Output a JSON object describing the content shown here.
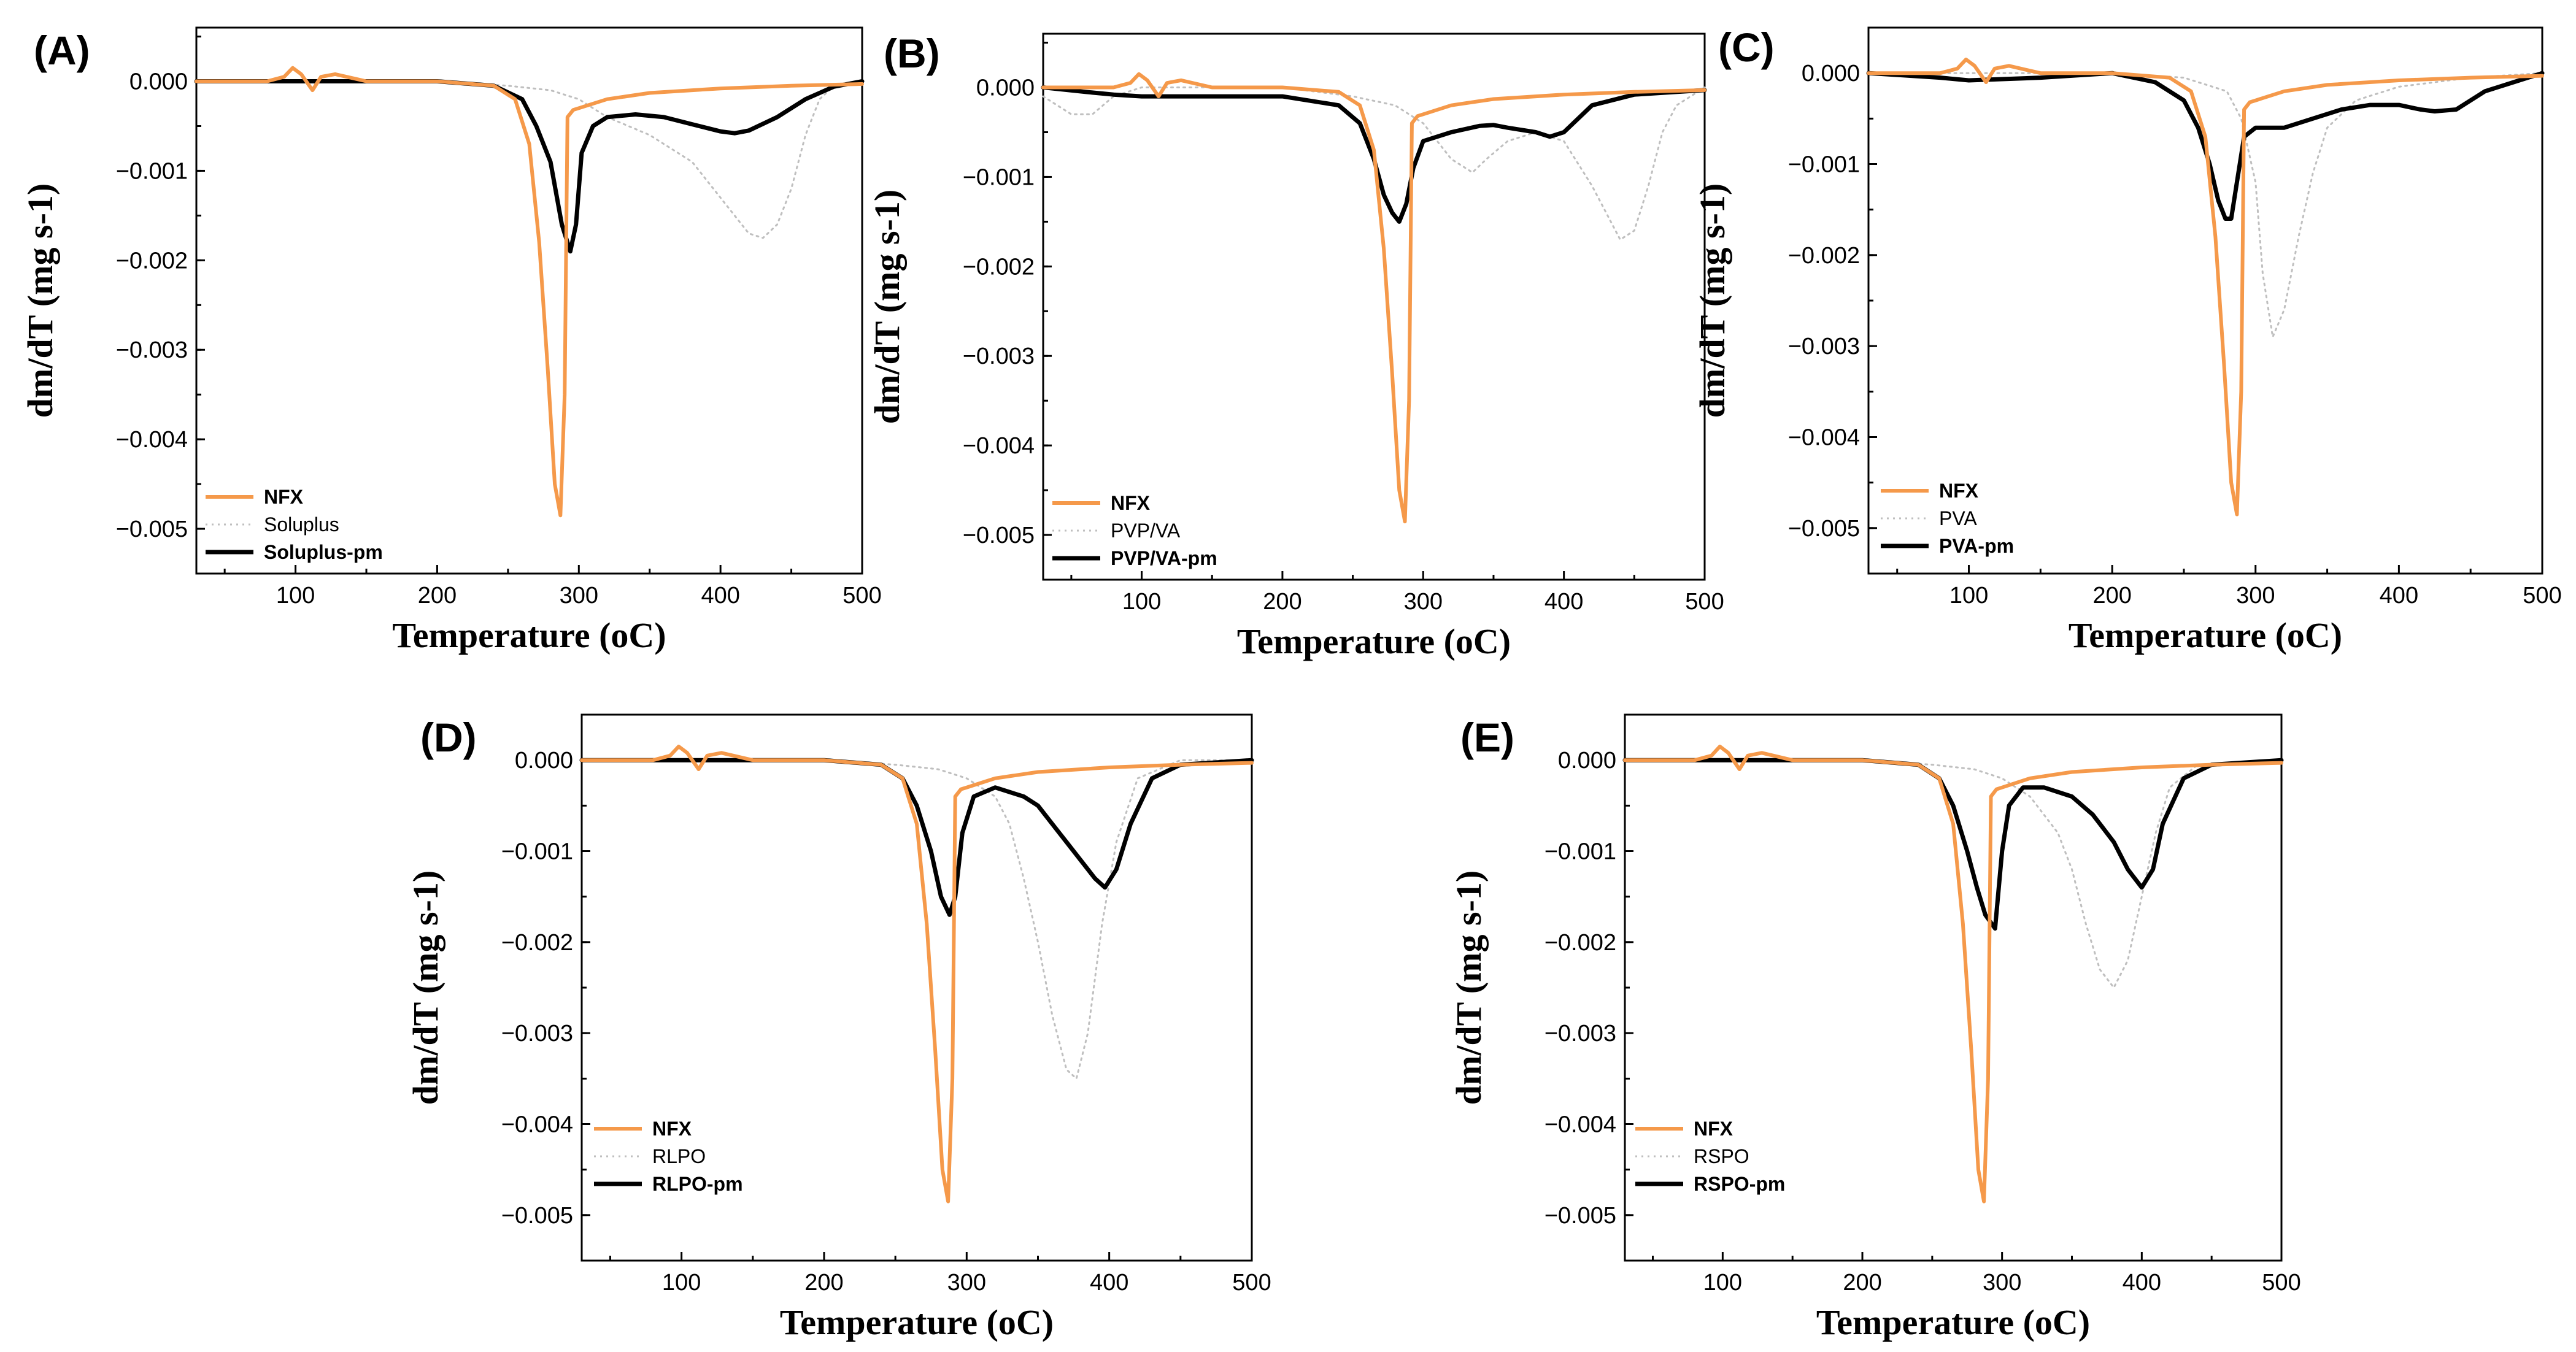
{
  "colors": {
    "drug": "#F5994A",
    "polymer": "#BFBFBF",
    "mixture": "#000000",
    "axis": "#000000"
  },
  "chart_data": [
    {
      "panel": "(A)",
      "type": "line",
      "xlabel": "Temperature (oC)",
      "ylabel": "dm/dT (mg s-1)",
      "xlim": [
        30,
        500
      ],
      "ylim": [
        -0.0055,
        0.0006
      ],
      "xticks": [
        "100",
        "200",
        "300",
        "400",
        "500"
      ],
      "yticks": [
        "0.000",
        "−0.001",
        "−0.002",
        "−0.003",
        "−0.004",
        "−0.005"
      ],
      "series": [
        {
          "name": "NFX",
          "role": "drug",
          "x": [
            30,
            80,
            92,
            98,
            104,
            112,
            118,
            128,
            150,
            200,
            240,
            255,
            265,
            272,
            278,
            283,
            287,
            290,
            292,
            296,
            300,
            320,
            350,
            400,
            450,
            500
          ],
          "y": [
            0,
            0,
            5e-05,
            0.00015,
            8e-05,
            -0.0001,
            5e-05,
            8e-05,
            0,
            0,
            -5e-05,
            -0.0002,
            -0.0007,
            -0.0018,
            -0.0032,
            -0.0045,
            -0.00485,
            -0.0035,
            -0.0004,
            -0.00032,
            -0.0003,
            -0.0002,
            -0.00013,
            -8e-05,
            -5e-05,
            -3e-05
          ]
        },
        {
          "name": "Soluplus",
          "role": "polymer",
          "x": [
            30,
            100,
            200,
            250,
            280,
            300,
            320,
            350,
            380,
            400,
            420,
            430,
            440,
            450,
            460,
            470,
            480,
            500
          ],
          "y": [
            0,
            0,
            0,
            -5e-05,
            -0.0001,
            -0.0002,
            -0.0004,
            -0.0006,
            -0.0009,
            -0.0013,
            -0.0017,
            -0.00175,
            -0.0016,
            -0.0012,
            -0.0006,
            -0.0002,
            -5e-05,
            0
          ]
        },
        {
          "name": "Soluplus-pm",
          "role": "mixture",
          "x": [
            30,
            100,
            200,
            240,
            260,
            270,
            280,
            288,
            294,
            298,
            302,
            310,
            320,
            340,
            360,
            380,
            400,
            410,
            420,
            440,
            460,
            480,
            500
          ],
          "y": [
            0,
            0,
            0,
            -5e-05,
            -0.0002,
            -0.0005,
            -0.0009,
            -0.0016,
            -0.0019,
            -0.0016,
            -0.0008,
            -0.0005,
            -0.0004,
            -0.00037,
            -0.0004,
            -0.00048,
            -0.00056,
            -0.00058,
            -0.00055,
            -0.0004,
            -0.0002,
            -6e-05,
            0
          ]
        }
      ]
    },
    {
      "panel": "(B)",
      "type": "line",
      "xlabel": "Temperature (oC)",
      "ylabel": "dm/dT (mg s-1)",
      "xlim": [
        30,
        500
      ],
      "ylim": [
        -0.0055,
        0.0006
      ],
      "xticks": [
        "100",
        "200",
        "300",
        "400",
        "500"
      ],
      "yticks": [
        "0.000",
        "−0.001",
        "−0.002",
        "−0.003",
        "−0.004",
        "−0.005"
      ],
      "series": [
        {
          "name": "NFX",
          "role": "drug",
          "x": [
            30,
            80,
            92,
            98,
            104,
            112,
            118,
            128,
            150,
            200,
            240,
            255,
            265,
            272,
            278,
            283,
            287,
            290,
            292,
            296,
            300,
            320,
            350,
            400,
            450,
            500
          ],
          "y": [
            0,
            0,
            5e-05,
            0.00015,
            8e-05,
            -0.0001,
            5e-05,
            8e-05,
            0,
            0,
            -5e-05,
            -0.0002,
            -0.0007,
            -0.0018,
            -0.0032,
            -0.0045,
            -0.00485,
            -0.0035,
            -0.0004,
            -0.00032,
            -0.0003,
            -0.0002,
            -0.00013,
            -8e-05,
            -5e-05,
            -3e-05
          ]
        },
        {
          "name": "PVP/VA",
          "role": "polymer",
          "x": [
            30,
            50,
            65,
            80,
            100,
            150,
            200,
            250,
            280,
            300,
            320,
            335,
            345,
            360,
            380,
            400,
            420,
            440,
            450,
            460,
            470,
            480,
            500
          ],
          "y": [
            -0.0001,
            -0.0003,
            -0.0003,
            -0.0001,
            0,
            0,
            0,
            -0.0001,
            -0.0002,
            -0.0004,
            -0.0008,
            -0.00095,
            -0.0008,
            -0.0006,
            -0.0005,
            -0.0006,
            -0.0011,
            -0.0017,
            -0.0016,
            -0.0011,
            -0.0005,
            -0.0002,
            0
          ]
        },
        {
          "name": "PVP/VA-pm",
          "role": "mixture",
          "x": [
            30,
            60,
            80,
            100,
            150,
            200,
            240,
            255,
            265,
            272,
            278,
            283,
            288,
            293,
            300,
            320,
            340,
            350,
            360,
            380,
            390,
            400,
            420,
            450,
            500
          ],
          "y": [
            0,
            -5e-05,
            -8e-05,
            -0.0001,
            -0.0001,
            -0.0001,
            -0.0002,
            -0.0004,
            -0.0008,
            -0.0012,
            -0.0014,
            -0.0015,
            -0.0013,
            -0.0009,
            -0.0006,
            -0.0005,
            -0.00043,
            -0.00042,
            -0.00045,
            -0.0005,
            -0.00055,
            -0.0005,
            -0.0002,
            -8e-05,
            -3e-05
          ]
        }
      ]
    },
    {
      "panel": "(C)",
      "type": "line",
      "xlabel": "Temperature (oC)",
      "ylabel": "dm/dT (mg s-1)",
      "xlim": [
        30,
        500
      ],
      "ylim": [
        -0.0055,
        0.0005
      ],
      "xticks": [
        "100",
        "200",
        "300",
        "400",
        "500"
      ],
      "yticks": [
        "0.000",
        "−0.001",
        "−0.002",
        "−0.003",
        "−0.004",
        "−0.005"
      ],
      "series": [
        {
          "name": "NFX",
          "role": "drug",
          "x": [
            30,
            80,
            92,
            98,
            104,
            112,
            118,
            128,
            150,
            200,
            240,
            255,
            265,
            272,
            278,
            283,
            287,
            290,
            292,
            296,
            300,
            320,
            350,
            400,
            450,
            500
          ],
          "y": [
            0,
            0,
            5e-05,
            0.00015,
            8e-05,
            -0.0001,
            5e-05,
            8e-05,
            0,
            0,
            -5e-05,
            -0.0002,
            -0.0007,
            -0.0018,
            -0.0032,
            -0.0045,
            -0.00485,
            -0.0035,
            -0.0004,
            -0.00032,
            -0.0003,
            -0.0002,
            -0.00013,
            -8e-05,
            -5e-05,
            -3e-05
          ]
        },
        {
          "name": "PVA",
          "role": "polymer",
          "x": [
            30,
            100,
            200,
            250,
            280,
            290,
            300,
            305,
            312,
            320,
            330,
            340,
            350,
            370,
            400,
            450,
            500
          ],
          "y": [
            0,
            0,
            0,
            -5e-05,
            -0.0002,
            -0.0005,
            -0.0012,
            -0.0022,
            -0.0029,
            -0.0026,
            -0.0018,
            -0.0011,
            -0.0006,
            -0.0003,
            -0.00015,
            -5e-05,
            0
          ]
        },
        {
          "name": "PVA-pm",
          "role": "mixture",
          "x": [
            30,
            80,
            100,
            150,
            200,
            230,
            250,
            260,
            268,
            274,
            279,
            283,
            287,
            292,
            300,
            320,
            340,
            360,
            380,
            400,
            415,
            425,
            440,
            460,
            480,
            500
          ],
          "y": [
            0,
            -5e-05,
            -8e-05,
            -5e-05,
            0,
            -0.0001,
            -0.0003,
            -0.0006,
            -0.001,
            -0.0014,
            -0.0016,
            -0.0016,
            -0.0012,
            -0.0007,
            -0.0006,
            -0.0006,
            -0.0005,
            -0.0004,
            -0.00035,
            -0.00035,
            -0.0004,
            -0.00042,
            -0.0004,
            -0.0002,
            -0.0001,
            0
          ]
        }
      ]
    },
    {
      "panel": "(D)",
      "type": "line",
      "xlabel": "Temperature (oC)",
      "ylabel": "dm/dT (mg s-1)",
      "xlim": [
        30,
        500
      ],
      "ylim": [
        -0.0055,
        0.0005
      ],
      "xticks": [
        "100",
        "200",
        "300",
        "400",
        "500"
      ],
      "yticks": [
        "0.000",
        "−0.001",
        "−0.002",
        "−0.003",
        "−0.004",
        "−0.005"
      ],
      "series": [
        {
          "name": "NFX",
          "role": "drug",
          "x": [
            30,
            80,
            92,
            98,
            104,
            112,
            118,
            128,
            150,
            200,
            240,
            255,
            265,
            272,
            278,
            283,
            287,
            290,
            292,
            296,
            300,
            320,
            350,
            400,
            450,
            500
          ],
          "y": [
            0,
            0,
            5e-05,
            0.00015,
            8e-05,
            -0.0001,
            5e-05,
            8e-05,
            0,
            0,
            -5e-05,
            -0.0002,
            -0.0007,
            -0.0018,
            -0.0032,
            -0.0045,
            -0.00485,
            -0.0035,
            -0.0004,
            -0.00032,
            -0.0003,
            -0.0002,
            -0.00013,
            -8e-05,
            -5e-05,
            -3e-05
          ]
        },
        {
          "name": "RLPO",
          "role": "polymer",
          "x": [
            30,
            100,
            200,
            250,
            280,
            300,
            320,
            330,
            340,
            350,
            360,
            370,
            377,
            385,
            395,
            405,
            420,
            450,
            500
          ],
          "y": [
            0,
            0,
            0,
            -5e-05,
            -0.0001,
            -0.0002,
            -0.0004,
            -0.0007,
            -0.0013,
            -0.002,
            -0.0028,
            -0.0034,
            -0.0035,
            -0.003,
            -0.0018,
            -0.0009,
            -0.0002,
            0,
            0
          ]
        },
        {
          "name": "RLPO-pm",
          "role": "mixture",
          "x": [
            30,
            100,
            200,
            240,
            255,
            265,
            275,
            282,
            288,
            292,
            297,
            305,
            320,
            340,
            350,
            360,
            370,
            380,
            390,
            397,
            405,
            415,
            430,
            450,
            500
          ],
          "y": [
            0,
            0,
            0,
            -5e-05,
            -0.0002,
            -0.0005,
            -0.001,
            -0.0015,
            -0.0017,
            -0.0015,
            -0.0008,
            -0.0004,
            -0.0003,
            -0.0004,
            -0.0005,
            -0.0007,
            -0.0009,
            -0.0011,
            -0.0013,
            -0.0014,
            -0.0012,
            -0.0007,
            -0.0002,
            -5e-05,
            0
          ]
        }
      ]
    },
    {
      "panel": "(E)",
      "type": "line",
      "xlabel": "Temperature (oC)",
      "ylabel": "dm/dT (mg s-1)",
      "xlim": [
        30,
        500
      ],
      "ylim": [
        -0.0055,
        0.0005
      ],
      "xticks": [
        "100",
        "200",
        "300",
        "400",
        "500"
      ],
      "yticks": [
        "0.000",
        "−0.001",
        "−0.002",
        "−0.003",
        "−0.004",
        "−0.005"
      ],
      "series": [
        {
          "name": "NFX",
          "role": "drug",
          "x": [
            30,
            80,
            92,
            98,
            104,
            112,
            118,
            128,
            150,
            200,
            240,
            255,
            265,
            272,
            278,
            283,
            287,
            290,
            292,
            296,
            300,
            320,
            350,
            400,
            450,
            500
          ],
          "y": [
            0,
            0,
            5e-05,
            0.00015,
            8e-05,
            -0.0001,
            5e-05,
            8e-05,
            0,
            0,
            -5e-05,
            -0.0002,
            -0.0007,
            -0.0018,
            -0.0032,
            -0.0045,
            -0.00485,
            -0.0035,
            -0.0004,
            -0.00032,
            -0.0003,
            -0.0002,
            -0.00013,
            -8e-05,
            -5e-05,
            -3e-05
          ]
        },
        {
          "name": "RSPO",
          "role": "polymer",
          "x": [
            30,
            100,
            200,
            250,
            280,
            300,
            320,
            340,
            350,
            360,
            370,
            380,
            390,
            400,
            410,
            420,
            440,
            500
          ],
          "y": [
            0,
            0,
            0,
            -5e-05,
            -0.0001,
            -0.0002,
            -0.0004,
            -0.0008,
            -0.0012,
            -0.0018,
            -0.0023,
            -0.0025,
            -0.0022,
            -0.0015,
            -0.0008,
            -0.0003,
            -5e-05,
            0
          ]
        },
        {
          "name": "RSPO-pm",
          "role": "mixture",
          "x": [
            30,
            100,
            200,
            240,
            255,
            265,
            275,
            282,
            288,
            295,
            300,
            305,
            315,
            330,
            350,
            365,
            380,
            390,
            400,
            408,
            415,
            430,
            450,
            500
          ],
          "y": [
            0,
            0,
            0,
            -5e-05,
            -0.0002,
            -0.0005,
            -0.001,
            -0.0014,
            -0.0017,
            -0.00185,
            -0.001,
            -0.0005,
            -0.0003,
            -0.0003,
            -0.0004,
            -0.0006,
            -0.0009,
            -0.0012,
            -0.0014,
            -0.0012,
            -0.0007,
            -0.0002,
            -5e-05,
            0
          ]
        }
      ]
    }
  ]
}
